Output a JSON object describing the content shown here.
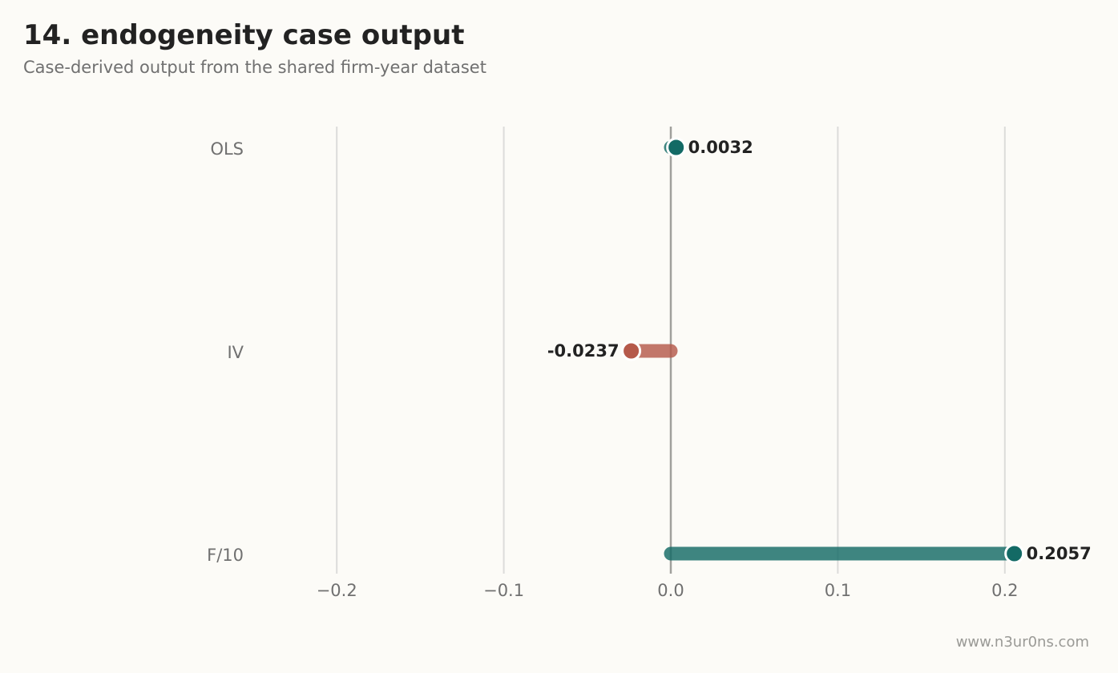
{
  "chart": {
    "title": "14. endogeneity case output",
    "subtitle": "Case-derived output from the shared firm-year dataset",
    "watermark": "www.n3ur0ns.com"
  },
  "colors": {
    "background": "#fcfbf7",
    "positive": "#136a65",
    "negative": "#b5594a",
    "grid": "#dcdcda",
    "zero_line": "#a0a09c"
  },
  "chart_data": {
    "type": "bar",
    "orientation": "horizontal",
    "categories": [
      "OLS",
      "IV",
      "F/10"
    ],
    "values": [
      0.0032,
      -0.0237,
      0.2057
    ],
    "value_labels": [
      "0.0032",
      "-0.0237",
      "0.2057"
    ],
    "xlim": [
      -0.25,
      0.25
    ],
    "xticks": [
      -0.2,
      -0.1,
      0.0,
      0.1,
      0.2
    ],
    "xtick_labels": [
      "−0.2",
      "−0.1",
      "0.0",
      "0.1",
      "0.2"
    ],
    "grid": "vertical",
    "title": "14. endogeneity case output",
    "xlabel": "",
    "ylabel": ""
  }
}
